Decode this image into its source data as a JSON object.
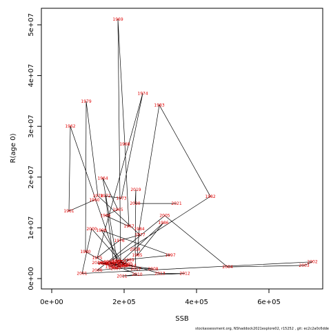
{
  "chart_data": {
    "type": "scatter",
    "connected": true,
    "x_label": "SSB",
    "y_label": "R(age 0)",
    "footer": "stockassessment.org, NShaddock2021explore02, r15252 , git: ec2c2a0c6dde",
    "line_color": "#000000",
    "label_color": "#e00000",
    "point_labels": [
      "1960",
      "1961",
      "1962",
      "1963",
      "1964",
      "1965",
      "1966",
      "1967",
      "1968",
      "1969",
      "1970",
      "1971",
      "1972",
      "1973",
      "1974",
      "1975",
      "1976",
      "1977",
      "1978",
      "1979",
      "1980",
      "1981",
      "1982",
      "1983",
      "1984",
      "1985",
      "1986",
      "1987",
      "1988",
      "1989",
      "1990",
      "1991",
      "1992",
      "1993",
      "1994",
      "1995",
      "1996",
      "1997",
      "1998",
      "1999",
      "2000",
      "2001",
      "2002",
      "2003",
      "2004",
      "2005",
      "2006",
      "2007",
      "2008",
      "2009",
      "2010",
      "2011",
      "2012",
      "2013",
      "2014",
      "2015",
      "2016",
      "2017",
      "2018",
      "2019",
      "2020",
      "2021"
    ],
    "x": [
      118100,
      47600,
      51400,
      181000,
      141000,
      182900,
      148600,
      213400,
      201900,
      182900,
      190500,
      171400,
      148600,
      192400,
      251500,
      125700,
      186700,
      243800,
      127600,
      95300,
      93300,
      152400,
      438200,
      297200,
      241900,
      236200,
      308600,
      184800,
      161900,
      213400,
      196200,
      141000,
      171400,
      190500,
      158100,
      209500,
      177200,
      327700,
      137200,
      200000,
      110500,
      83800,
      720100,
      697200,
      485800,
      312400,
      125700,
      177200,
      280000,
      161900,
      236200,
      194300,
      367700,
      299100,
      219100,
      142900,
      125700,
      232400,
      230500,
      232400,
      230500,
      344800
    ],
    "values": [
      15500000,
      13300000,
      30000000,
      3300000,
      19800000,
      13600000,
      12400000,
      10300000,
      26500000,
      51100000,
      3300000,
      2900000,
      16300000,
      15800000,
      36500000,
      4100000,
      7500000,
      8600000,
      16300000,
      34900000,
      5300000,
      3000000,
      16200000,
      34200000,
      9800000,
      4600000,
      11000000,
      2900000,
      2400000,
      3700000,
      2600000,
      3100000,
      2200000,
      2400000,
      3300000,
      2900000,
      3500000,
      4600000,
      9500000,
      2600000,
      9800000,
      1000000,
      3300000,
      2600000,
      2300000,
      12400000,
      1600000,
      2000000,
      1900000,
      3000000,
      800000,
      500000,
      1000000,
      1000000,
      2600000,
      3000000,
      3100000,
      1900000,
      5800000,
      17500000,
      14800000,
      14800000
    ],
    "xlim": [
      -28571,
      748571
    ],
    "ylim": [
      -2040000,
      53260000
    ],
    "xticks": [
      {
        "value": 0,
        "label": "0e+00"
      },
      {
        "value": 200000,
        "label": "2e+05"
      },
      {
        "value": 400000,
        "label": "4e+05"
      },
      {
        "value": 600000,
        "label": "6e+05"
      }
    ],
    "yticks": [
      {
        "value": 0,
        "label": "0e+00"
      },
      {
        "value": 10000000,
        "label": "1e+07"
      },
      {
        "value": 20000000,
        "label": "2e+07"
      },
      {
        "value": 30000000,
        "label": "3e+07"
      },
      {
        "value": 40000000,
        "label": "4e+07"
      },
      {
        "value": 50000000,
        "label": "5e+07"
      }
    ]
  }
}
